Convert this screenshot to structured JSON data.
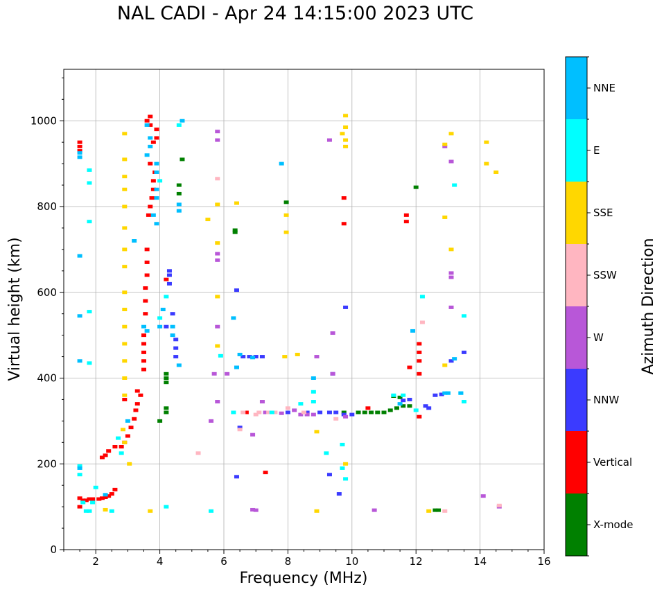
{
  "chart_data": {
    "type": "scatter",
    "title": "NAL CADI - Apr 24 14:15:00 2023 UTC",
    "xlabel": "Frequency (MHz)",
    "ylabel": "Virtual height (km)",
    "xlim": [
      1,
      16
    ],
    "ylim": [
      0,
      1120
    ],
    "xticks": [
      2,
      4,
      6,
      8,
      10,
      12,
      14,
      16
    ],
    "yticks": [
      0,
      200,
      400,
      600,
      800,
      1000
    ],
    "grid": true,
    "colorbar": {
      "label": "Azimuth Direction",
      "categories": [
        {
          "name": "X-mode",
          "color": "#008000"
        },
        {
          "name": "Vertical",
          "color": "#ff0000"
        },
        {
          "name": "NNW",
          "color": "#3b3bff"
        },
        {
          "name": "W",
          "color": "#b857d8"
        },
        {
          "name": "SSW",
          "color": "#ffb6c1"
        },
        {
          "name": "SSE",
          "color": "#ffd700"
        },
        {
          "name": "E",
          "color": "#00ffff"
        },
        {
          "name": "NNE",
          "color": "#00bfff"
        }
      ]
    },
    "series": [
      {
        "name": "X-mode",
        "points": [
          [
            4.2,
            410
          ],
          [
            4.2,
            400
          ],
          [
            4.2,
            390
          ],
          [
            4.2,
            330
          ],
          [
            4.2,
            320
          ],
          [
            4.0,
            300
          ],
          [
            4.6,
            850
          ],
          [
            4.6,
            830
          ],
          [
            4.7,
            910
          ],
          [
            6.35,
            745
          ],
          [
            6.35,
            740
          ],
          [
            7.95,
            810
          ],
          [
            9.75,
            320
          ],
          [
            10.2,
            320
          ],
          [
            10.4,
            320
          ],
          [
            10.6,
            320
          ],
          [
            10.8,
            320
          ],
          [
            11.0,
            320
          ],
          [
            11.2,
            325
          ],
          [
            11.4,
            330
          ],
          [
            11.6,
            335
          ],
          [
            11.8,
            335
          ],
          [
            11.3,
            358
          ],
          [
            11.5,
            355
          ],
          [
            12.0,
            845
          ],
          [
            12.6,
            92
          ],
          [
            12.7,
            92
          ]
        ]
      },
      {
        "name": "Vertical",
        "points": [
          [
            1.5,
            950
          ],
          [
            1.5,
            940
          ],
          [
            1.5,
            930
          ],
          [
            1.5,
            120
          ],
          [
            1.5,
            100
          ],
          [
            1.6,
            115
          ],
          [
            1.7,
            115
          ],
          [
            1.8,
            118
          ],
          [
            1.9,
            118
          ],
          [
            2.1,
            118
          ],
          [
            2.2,
            120
          ],
          [
            2.3,
            122
          ],
          [
            2.4,
            125
          ],
          [
            2.5,
            130
          ],
          [
            2.6,
            140
          ],
          [
            2.2,
            215
          ],
          [
            2.3,
            220
          ],
          [
            2.4,
            230
          ],
          [
            2.6,
            240
          ],
          [
            2.8,
            240
          ],
          [
            2.9,
            250
          ],
          [
            3.0,
            265
          ],
          [
            3.1,
            285
          ],
          [
            3.2,
            305
          ],
          [
            3.25,
            325
          ],
          [
            3.3,
            340
          ],
          [
            3.4,
            360
          ],
          [
            3.5,
            420
          ],
          [
            3.5,
            440
          ],
          [
            3.5,
            460
          ],
          [
            3.5,
            480
          ],
          [
            3.5,
            500
          ],
          [
            3.55,
            550
          ],
          [
            3.55,
            580
          ],
          [
            3.55,
            610
          ],
          [
            3.6,
            640
          ],
          [
            3.6,
            670
          ],
          [
            3.6,
            700
          ],
          [
            3.65,
            780
          ],
          [
            3.7,
            800
          ],
          [
            3.75,
            820
          ],
          [
            3.8,
            840
          ],
          [
            3.8,
            860
          ],
          [
            3.85,
            880
          ],
          [
            3.7,
            900
          ],
          [
            3.8,
            950
          ],
          [
            3.9,
            960
          ],
          [
            3.9,
            980
          ],
          [
            3.7,
            990
          ],
          [
            3.6,
            1000
          ],
          [
            3.7,
            1010
          ],
          [
            4.2,
            630
          ],
          [
            6.7,
            320
          ],
          [
            7.3,
            180
          ],
          [
            9.75,
            820
          ],
          [
            9.75,
            760
          ],
          [
            10.5,
            330
          ],
          [
            11.7,
            780
          ],
          [
            11.7,
            765
          ],
          [
            11.8,
            425
          ],
          [
            12.1,
            480
          ],
          [
            12.1,
            460
          ],
          [
            12.1,
            440
          ],
          [
            12.1,
            410
          ],
          [
            12.1,
            310
          ],
          [
            2.9,
            350
          ],
          [
            3.3,
            370
          ]
        ]
      },
      {
        "name": "NNW",
        "points": [
          [
            4.3,
            650
          ],
          [
            4.3,
            640
          ],
          [
            4.3,
            620
          ],
          [
            4.4,
            550
          ],
          [
            4.2,
            520
          ],
          [
            4.5,
            490
          ],
          [
            4.5,
            470
          ],
          [
            4.5,
            450
          ],
          [
            6.4,
            605
          ],
          [
            6.4,
            425
          ],
          [
            6.6,
            450
          ],
          [
            6.8,
            450
          ],
          [
            7.0,
            450
          ],
          [
            7.2,
            450
          ],
          [
            8.0,
            320
          ],
          [
            8.6,
            320
          ],
          [
            9.0,
            320
          ],
          [
            9.3,
            320
          ],
          [
            9.5,
            320
          ],
          [
            9.8,
            565
          ],
          [
            9.75,
            315
          ],
          [
            9.4,
            410
          ],
          [
            9.6,
            130
          ],
          [
            9.3,
            175
          ],
          [
            6.4,
            170
          ],
          [
            10.0,
            315
          ],
          [
            11.6,
            348
          ],
          [
            11.8,
            350
          ],
          [
            12.3,
            335
          ],
          [
            12.4,
            330
          ],
          [
            12.6,
            360
          ],
          [
            12.8,
            362
          ],
          [
            13.1,
            440
          ],
          [
            13.5,
            460
          ],
          [
            6.5,
            285
          ]
        ]
      },
      {
        "name": "W",
        "points": [
          [
            5.8,
            975
          ],
          [
            5.8,
            955
          ],
          [
            5.8,
            690
          ],
          [
            5.8,
            675
          ],
          [
            5.8,
            520
          ],
          [
            5.8,
            345
          ],
          [
            5.7,
            410
          ],
          [
            5.6,
            300
          ],
          [
            6.1,
            410
          ],
          [
            6.9,
            268
          ],
          [
            7.0,
            92
          ],
          [
            7.2,
            345
          ],
          [
            7.3,
            320
          ],
          [
            7.8,
            318
          ],
          [
            8.2,
            325
          ],
          [
            8.4,
            315
          ],
          [
            8.6,
            315
          ],
          [
            8.8,
            315
          ],
          [
            8.9,
            450
          ],
          [
            9.3,
            955
          ],
          [
            9.4,
            410
          ],
          [
            9.4,
            505
          ],
          [
            9.8,
            310
          ],
          [
            10.7,
            92
          ],
          [
            12.9,
            940
          ],
          [
            13.1,
            905
          ],
          [
            13.1,
            645
          ],
          [
            13.1,
            635
          ],
          [
            13.1,
            565
          ],
          [
            14.1,
            125
          ],
          [
            14.6,
            100
          ],
          [
            6.9,
            93
          ]
        ]
      },
      {
        "name": "SSW",
        "points": [
          [
            5.8,
            865
          ],
          [
            5.2,
            225
          ],
          [
            7.0,
            315
          ],
          [
            7.1,
            320
          ],
          [
            7.4,
            320
          ],
          [
            7.6,
            320
          ],
          [
            8.0,
            330
          ],
          [
            8.5,
            320
          ],
          [
            9.5,
            305
          ],
          [
            12.2,
            530
          ],
          [
            12.9,
            90
          ],
          [
            14.6,
            103
          ],
          [
            6.6,
            320
          ],
          [
            6.5,
            280
          ]
        ]
      },
      {
        "name": "SSE",
        "points": [
          [
            2.9,
            970
          ],
          [
            2.9,
            910
          ],
          [
            2.9,
            870
          ],
          [
            2.9,
            840
          ],
          [
            2.9,
            800
          ],
          [
            2.9,
            750
          ],
          [
            2.9,
            700
          ],
          [
            2.9,
            660
          ],
          [
            2.9,
            600
          ],
          [
            2.9,
            560
          ],
          [
            2.9,
            520
          ],
          [
            2.9,
            480
          ],
          [
            2.9,
            440
          ],
          [
            2.9,
            400
          ],
          [
            2.9,
            360
          ],
          [
            2.85,
            280
          ],
          [
            2.9,
            250
          ],
          [
            3.7,
            90
          ],
          [
            5.5,
            770
          ],
          [
            5.8,
            805
          ],
          [
            5.8,
            715
          ],
          [
            5.8,
            590
          ],
          [
            5.8,
            475
          ],
          [
            6.4,
            808
          ],
          [
            7.95,
            780
          ],
          [
            7.95,
            740
          ],
          [
            7.9,
            450
          ],
          [
            8.3,
            455
          ],
          [
            8.9,
            275
          ],
          [
            8.9,
            90
          ],
          [
            9.8,
            1012
          ],
          [
            9.8,
            985
          ],
          [
            9.7,
            970
          ],
          [
            9.8,
            955
          ],
          [
            9.8,
            940
          ],
          [
            9.8,
            200
          ],
          [
            12.4,
            90
          ],
          [
            12.9,
            945
          ],
          [
            12.9,
            775
          ],
          [
            12.9,
            430
          ],
          [
            13.1,
            970
          ],
          [
            13.1,
            700
          ],
          [
            14.2,
            950
          ],
          [
            14.2,
            900
          ],
          [
            14.5,
            880
          ],
          [
            2.3,
            93
          ],
          [
            3.05,
            200
          ]
        ]
      },
      {
        "name": "E",
        "points": [
          [
            1.5,
            195
          ],
          [
            1.5,
            175
          ],
          [
            1.6,
            110
          ],
          [
            1.7,
            90
          ],
          [
            1.8,
            90
          ],
          [
            1.9,
            110
          ],
          [
            2.0,
            145
          ],
          [
            1.8,
            885
          ],
          [
            1.8,
            855
          ],
          [
            1.8,
            765
          ],
          [
            1.8,
            555
          ],
          [
            1.8,
            435
          ],
          [
            2.7,
            260
          ],
          [
            2.8,
            225
          ],
          [
            4.0,
            540
          ],
          [
            4.0,
            860
          ],
          [
            4.2,
            590
          ],
          [
            4.2,
            100
          ],
          [
            4.6,
            990
          ],
          [
            5.6,
            90
          ],
          [
            5.9,
            452
          ],
          [
            6.3,
            320
          ],
          [
            7.5,
            320
          ],
          [
            8.4,
            340
          ],
          [
            8.8,
            368
          ],
          [
            8.8,
            345
          ],
          [
            9.2,
            225
          ],
          [
            9.7,
            245
          ],
          [
            9.7,
            190
          ],
          [
            9.8,
            165
          ],
          [
            11.3,
            360
          ],
          [
            11.6,
            360
          ],
          [
            12.0,
            325
          ],
          [
            12.2,
            590
          ],
          [
            13.0,
            365
          ],
          [
            13.2,
            850
          ],
          [
            13.5,
            545
          ],
          [
            13.5,
            345
          ],
          [
            13.4,
            365
          ],
          [
            2.5,
            90
          ]
        ]
      },
      {
        "name": "NNE",
        "points": [
          [
            1.5,
            925
          ],
          [
            1.5,
            915
          ],
          [
            1.5,
            685
          ],
          [
            1.5,
            545
          ],
          [
            1.5,
            440
          ],
          [
            1.5,
            190
          ],
          [
            3.6,
            990
          ],
          [
            3.7,
            960
          ],
          [
            3.7,
            940
          ],
          [
            3.6,
            920
          ],
          [
            3.9,
            900
          ],
          [
            3.9,
            880
          ],
          [
            3.9,
            840
          ],
          [
            3.9,
            820
          ],
          [
            3.8,
            780
          ],
          [
            3.9,
            760
          ],
          [
            3.5,
            520
          ],
          [
            3.6,
            510
          ],
          [
            4.0,
            520
          ],
          [
            4.1,
            560
          ],
          [
            4.4,
            520
          ],
          [
            4.4,
            500
          ],
          [
            4.6,
            430
          ],
          [
            4.6,
            805
          ],
          [
            4.6,
            790
          ],
          [
            4.7,
            1000
          ],
          [
            3.2,
            720
          ],
          [
            6.3,
            540
          ],
          [
            6.4,
            425
          ],
          [
            6.5,
            455
          ],
          [
            6.9,
            448
          ],
          [
            7.8,
            900
          ],
          [
            8.8,
            400
          ],
          [
            11.5,
            340
          ],
          [
            11.9,
            510
          ],
          [
            12.9,
            365
          ],
          [
            13.0,
            365
          ],
          [
            13.2,
            445
          ],
          [
            13.4,
            365
          ],
          [
            2.3,
            128
          ],
          [
            3.0,
            300
          ]
        ]
      }
    ]
  }
}
